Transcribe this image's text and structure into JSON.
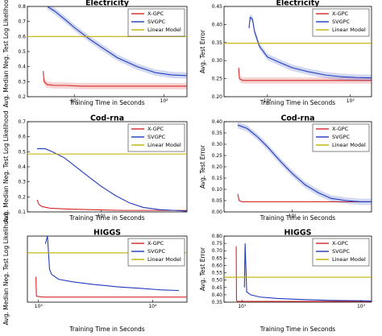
{
  "chart_data": [
    {
      "type": "line",
      "title": "Electricity",
      "xlabel": "Training Time in Seconds",
      "ylabel": "Avg. Median Neg. Test Log Likelihood",
      "xscale": "log",
      "xlim": [
        3,
        180
      ],
      "ylim": [
        0.2,
        0.8
      ],
      "yticks": [
        "0.2",
        "0.3",
        "0.4",
        "0.5",
        "0.6",
        "0.7",
        "0.8"
      ],
      "xticks": [
        {
          "value": 10,
          "label": "10¹"
        },
        {
          "value": 100,
          "label": "10²"
        }
      ],
      "legend": "top-right",
      "series": [
        {
          "name": "X-GPC",
          "color": "#d62728",
          "band": true,
          "x": [
            4.5,
            4.6,
            5.0,
            6.0,
            8.0,
            12.0,
            20.0,
            40.0,
            80.0,
            180.0
          ],
          "y": [
            0.37,
            0.3,
            0.28,
            0.275,
            0.275,
            0.27,
            0.27,
            0.27,
            0.27,
            0.27
          ]
        },
        {
          "name": "SVGPC",
          "color": "#1f3bbd",
          "band": true,
          "x": [
            5.0,
            6.0,
            8.0,
            10.0,
            15.0,
            20.0,
            30.0,
            50.0,
            80.0,
            120.0,
            180.0
          ],
          "y": [
            0.8,
            0.77,
            0.71,
            0.66,
            0.58,
            0.53,
            0.46,
            0.4,
            0.36,
            0.345,
            0.34
          ]
        },
        {
          "name": "Linear Model",
          "color": "#bfb000",
          "band": false,
          "x": [
            3.0,
            180.0
          ],
          "y": [
            0.6,
            0.6
          ]
        }
      ]
    },
    {
      "type": "line",
      "title": "Electricity",
      "xlabel": "Training Time in Seconds",
      "ylabel": "Avg. Test Error",
      "xscale": "log",
      "xlim": [
        3,
        180
      ],
      "ylim": [
        0.2,
        0.45
      ],
      "yticks": [
        "0.20",
        "0.25",
        "0.30",
        "0.35",
        "0.40",
        "0.45"
      ],
      "xticks": [
        {
          "value": 10,
          "label": "10¹"
        },
        {
          "value": 100,
          "label": "10²"
        }
      ],
      "legend": "top-right",
      "series": [
        {
          "name": "X-GPC",
          "color": "#d62728",
          "band": true,
          "x": [
            4.5,
            4.6,
            5.0,
            6.0,
            8.0,
            12.0,
            20.0,
            40.0,
            80.0,
            180.0
          ],
          "y": [
            0.28,
            0.25,
            0.245,
            0.245,
            0.245,
            0.245,
            0.245,
            0.245,
            0.245,
            0.245
          ]
        },
        {
          "name": "SVGPC",
          "color": "#1f3bbd",
          "band": true,
          "x": [
            6.0,
            6.2,
            6.6,
            7.0,
            8.0,
            10.0,
            14.0,
            20.0,
            30.0,
            50.0,
            80.0,
            120.0,
            180.0
          ],
          "y": [
            0.39,
            0.42,
            0.415,
            0.38,
            0.34,
            0.31,
            0.295,
            0.28,
            0.27,
            0.26,
            0.255,
            0.253,
            0.252
          ]
        },
        {
          "name": "Linear Model",
          "color": "#bfb000",
          "band": false,
          "x": [
            3.0,
            180.0
          ],
          "y": [
            0.348,
            0.348
          ]
        }
      ]
    },
    {
      "type": "line",
      "title": "Cod-rna",
      "xlabel": "Training Time in Seconds",
      "ylabel": "Avg. Median Neg. Test Log Likelihood",
      "xscale": "log",
      "xlim": [
        25,
        500
      ],
      "ylim": [
        0.1,
        0.7
      ],
      "yticks": [
        "0.1",
        "0.2",
        "0.3",
        "0.4",
        "0.5",
        "0.6",
        "0.7"
      ],
      "xticks": [
        {
          "value": 100,
          "label": "10²"
        }
      ],
      "legend": "top-right",
      "series": [
        {
          "name": "X-GPC",
          "color": "#d62728",
          "band": false,
          "x": [
            30.0,
            31.0,
            33.0,
            38.0,
            50.0,
            80.0,
            150.0,
            300.0,
            500.0
          ],
          "y": [
            0.18,
            0.15,
            0.135,
            0.125,
            0.12,
            0.115,
            0.11,
            0.11,
            0.11
          ]
        },
        {
          "name": "SVGPC",
          "color": "#1f3bbd",
          "band": false,
          "x": [
            30.0,
            35.0,
            40.0,
            50.0,
            60.0,
            80.0,
            100.0,
            130.0,
            170.0,
            220.0,
            300.0,
            400.0,
            500.0
          ],
          "y": [
            0.52,
            0.52,
            0.5,
            0.46,
            0.41,
            0.33,
            0.27,
            0.21,
            0.16,
            0.13,
            0.115,
            0.11,
            0.105
          ]
        },
        {
          "name": "Linear Model",
          "color": "#bfb000",
          "band": false,
          "x": [
            25.0,
            500.0
          ],
          "y": [
            0.485,
            0.485
          ]
        }
      ]
    },
    {
      "type": "line",
      "title": "Cod-rna",
      "xlabel": "Training Time in Seconds",
      "ylabel": "Avg. Test Error",
      "xscale": "log",
      "xlim": [
        25,
        500
      ],
      "ylim": [
        0.0,
        0.4
      ],
      "yticks": [
        "0.00",
        "0.05",
        "0.10",
        "0.15",
        "0.20",
        "0.25",
        "0.30",
        "0.35",
        "0.40"
      ],
      "xticks": [
        {
          "value": 100,
          "label": "10²"
        }
      ],
      "legend": "top-right",
      "series": [
        {
          "name": "X-GPC",
          "color": "#d62728",
          "band": false,
          "x": [
            33.0,
            34.0,
            36.0,
            40.0,
            50.0,
            80.0,
            150.0,
            300.0,
            500.0
          ],
          "y": [
            0.08,
            0.05,
            0.045,
            0.045,
            0.045,
            0.045,
            0.045,
            0.045,
            0.045
          ]
        },
        {
          "name": "SVGPC",
          "color": "#1f3bbd",
          "band": true,
          "x": [
            33.0,
            40.0,
            50.0,
            60.0,
            80.0,
            100.0,
            130.0,
            170.0,
            220.0,
            300.0,
            400.0,
            500.0
          ],
          "y": [
            0.385,
            0.37,
            0.33,
            0.29,
            0.22,
            0.17,
            0.12,
            0.085,
            0.06,
            0.05,
            0.045,
            0.045
          ]
        },
        {
          "name": "Linear Model",
          "color": "#bfb000",
          "band": false,
          "x": [],
          "y": []
        }
      ]
    },
    {
      "type": "line",
      "title": "HIGGS",
      "xlabel": "Training Time in Seconds",
      "ylabel": "Avg. Median Neg. Test Log Likelihood",
      "xscale": "log",
      "xlim": [
        800,
        20000
      ],
      "ylim": [
        0.565,
        0.695
      ],
      "yticks": [],
      "xticks": [
        {
          "value": 1000,
          "label": "10³"
        },
        {
          "value": 10000,
          "label": "10⁴"
        }
      ],
      "legend": "top-right",
      "series": [
        {
          "name": "X-GPC",
          "color": "#d62728",
          "band": false,
          "x": [
            950.0,
            960.0,
            1000.0,
            1100.0,
            2000.0,
            5000.0,
            10000.0,
            20000.0
          ],
          "y": [
            0.615,
            0.577,
            0.576,
            0.575,
            0.575,
            0.575,
            0.575,
            0.575
          ]
        },
        {
          "name": "SVGPC",
          "color": "#1f3bbd",
          "band": false,
          "x": [
            1150.0,
            1200.0,
            1250.0,
            1300.0,
            1500.0,
            2000.0,
            3000.0,
            5000.0,
            8000.0,
            12000.0,
            17000.0
          ],
          "y": [
            0.68,
            0.695,
            0.63,
            0.62,
            0.61,
            0.605,
            0.6,
            0.595,
            0.592,
            0.589,
            0.588
          ]
        },
        {
          "name": "Linear Model",
          "color": "#bfb000",
          "band": false,
          "x": [
            800.0,
            20000.0
          ],
          "y": [
            0.662,
            0.662
          ]
        }
      ]
    },
    {
      "type": "line",
      "title": "HIGGS",
      "xlabel": "Training Time in Seconds",
      "ylabel": "Avg. Test Error",
      "xscale": "log",
      "xlim": [
        5,
        1500
      ],
      "ylim": [
        0.35,
        0.8
      ],
      "yticks": [
        "0.35",
        "0.40",
        "0.45",
        "0.50",
        "0.55",
        "0.60",
        "0.65",
        "0.70",
        "0.75",
        "0.80"
      ],
      "xticks": [
        {
          "value": 10,
          "label": "10¹"
        },
        {
          "value": 1000,
          "label": "10³"
        }
      ],
      "legend": "top-right",
      "series": [
        {
          "name": "X-GPC",
          "color": "#d62728",
          "band": false,
          "x": [
            8.0,
            8.1,
            8.5,
            10.0,
            20.0,
            100.0,
            500.0,
            1500.0
          ],
          "y": [
            0.73,
            0.36,
            0.355,
            0.355,
            0.355,
            0.355,
            0.355,
            0.355
          ]
        },
        {
          "name": "SVGPC",
          "color": "#1f3bbd",
          "band": false,
          "x": [
            11.0,
            11.3,
            12.0,
            14.0,
            20.0,
            40.0,
            100.0,
            300.0,
            800.0,
            1500.0
          ],
          "y": [
            0.45,
            0.75,
            0.42,
            0.4,
            0.385,
            0.375,
            0.368,
            0.362,
            0.36,
            0.358
          ]
        },
        {
          "name": "Linear Model",
          "color": "#bfb000",
          "band": false,
          "x": [
            5.0,
            1500.0
          ],
          "y": [
            0.52,
            0.52
          ]
        }
      ]
    }
  ]
}
